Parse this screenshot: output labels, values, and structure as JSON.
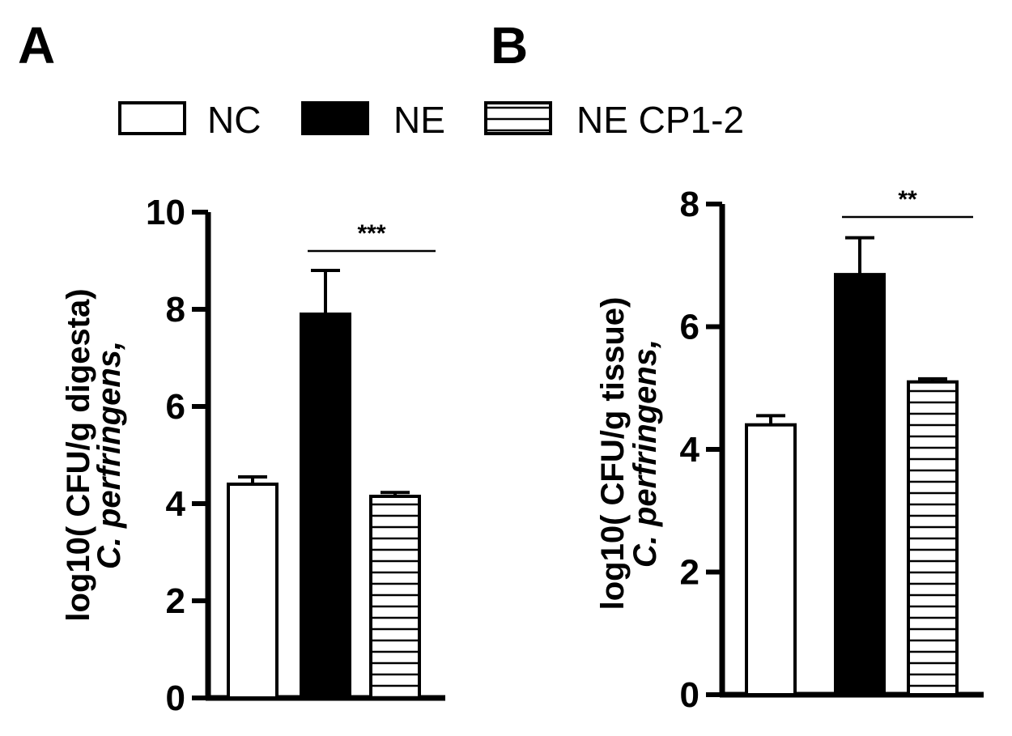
{
  "panel_a_letter": "A",
  "panel_b_letter": "B",
  "legend": [
    {
      "name": "NC",
      "fill": "white"
    },
    {
      "name": "NE",
      "fill": "black"
    },
    {
      "name": "NE CP1-2",
      "fill": "hatched"
    }
  ],
  "colors": {
    "ink": "#000000",
    "background": "#ffffff"
  },
  "chart_data": [
    {
      "type": "bar",
      "panel": "A",
      "categories": [
        "NC",
        "NE",
        "NE CP1-2"
      ],
      "values": [
        4.4,
        7.9,
        4.15
      ],
      "errors": [
        0.15,
        0.9,
        0.08
      ],
      "ylabel_line1_italic": "C. perfringens,",
      "ylabel_line2": "log10( CFU/g digesta)",
      "ylim": [
        0,
        10
      ],
      "yticks": [
        0,
        2,
        4,
        6,
        8,
        10
      ],
      "significance": {
        "from": 1,
        "to": 2,
        "label": "***"
      },
      "legend": "top"
    },
    {
      "type": "bar",
      "panel": "B",
      "categories": [
        "NC",
        "NE",
        "NE CP1-2"
      ],
      "values": [
        4.4,
        6.85,
        5.1
      ],
      "errors": [
        0.15,
        0.6,
        0.05
      ],
      "ylabel_line1_italic": "C. perfringens,",
      "ylabel_line2": "log10( CFU/g tissue)",
      "ylim": [
        0,
        8
      ],
      "yticks": [
        0,
        2,
        4,
        6,
        8
      ],
      "significance": {
        "from": 1,
        "to": 2,
        "label": "**"
      },
      "legend": "top"
    }
  ]
}
